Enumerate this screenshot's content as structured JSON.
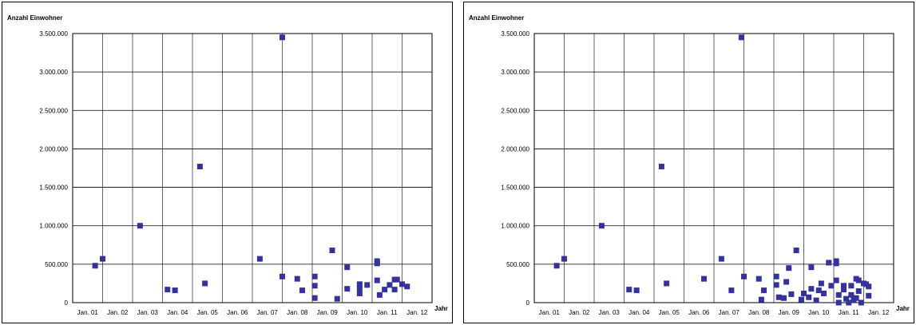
{
  "chart_data": [
    {
      "type": "scatter",
      "ylabel": "Anzahl Einwohner",
      "xlabel": "Jahr",
      "ylim": [
        0,
        3500000
      ],
      "yticks": [
        0,
        500000,
        1000000,
        1500000,
        2000000,
        2500000,
        3000000,
        3500000
      ],
      "ytick_labels": [
        "0",
        "500.000",
        "1.000.000",
        "1.500.000",
        "2.000.000",
        "2.500.000",
        "3.000.000",
        "3.500.000"
      ],
      "xlim": [
        "2001-01",
        "2013-01"
      ],
      "xtick_labels": [
        "Jan. 01",
        "Jan. 02",
        "Jan. 03",
        "Jan. 04",
        "Jan. 05",
        "Jan. 06",
        "Jan. 07",
        "Jan. 08",
        "Jan. 09",
        "Jan. 10",
        "Jan. 11",
        "Jan. 12"
      ],
      "grid": true,
      "marker_color": "#333399",
      "points": [
        {
          "x": "2001-10",
          "y": 480000
        },
        {
          "x": "2002-01",
          "y": 570000
        },
        {
          "x": "2003-04",
          "y": 1000000
        },
        {
          "x": "2004-03",
          "y": 170000
        },
        {
          "x": "2004-06",
          "y": 160000
        },
        {
          "x": "2005-04",
          "y": 1770000
        },
        {
          "x": "2005-06",
          "y": 250000
        },
        {
          "x": "2007-04",
          "y": 570000
        },
        {
          "x": "2008-01",
          "y": 3450000
        },
        {
          "x": "2008-01",
          "y": 340000
        },
        {
          "x": "2008-07",
          "y": 310000
        },
        {
          "x": "2008-09",
          "y": 160000
        },
        {
          "x": "2009-02",
          "y": 340000
        },
        {
          "x": "2009-02",
          "y": 220000
        },
        {
          "x": "2009-02",
          "y": 60000
        },
        {
          "x": "2009-09",
          "y": 680000
        },
        {
          "x": "2009-11",
          "y": 50000
        },
        {
          "x": "2010-03",
          "y": 460000
        },
        {
          "x": "2010-03",
          "y": 180000
        },
        {
          "x": "2010-08",
          "y": 240000
        },
        {
          "x": "2010-08",
          "y": 190000
        },
        {
          "x": "2010-08",
          "y": 120000
        },
        {
          "x": "2010-11",
          "y": 230000
        },
        {
          "x": "2011-03",
          "y": 540000
        },
        {
          "x": "2011-03",
          "y": 510000
        },
        {
          "x": "2011-03",
          "y": 290000
        },
        {
          "x": "2011-04",
          "y": 100000
        },
        {
          "x": "2011-06",
          "y": 170000
        },
        {
          "x": "2011-08",
          "y": 230000
        },
        {
          "x": "2011-10",
          "y": 300000
        },
        {
          "x": "2011-10",
          "y": 170000
        },
        {
          "x": "2011-11",
          "y": 300000
        },
        {
          "x": "2012-01",
          "y": 240000
        },
        {
          "x": "2012-03",
          "y": 210000
        }
      ]
    },
    {
      "type": "scatter",
      "ylabel": "Anzahl Einwohner",
      "xlabel": "Jahr",
      "ylim": [
        0,
        3500000
      ],
      "yticks": [
        0,
        500000,
        1000000,
        1500000,
        2000000,
        2500000,
        3000000,
        3500000
      ],
      "ytick_labels": [
        "0",
        "500.000",
        "1.000.000",
        "1.500.000",
        "2.000.000",
        "2.500.000",
        "3.000.000",
        "3.500.000"
      ],
      "xlim": [
        "2001-01",
        "2013-01"
      ],
      "xtick_labels": [
        "Jan. 01",
        "Jan. 02",
        "Jan. 03",
        "Jan. 04",
        "Jan. 05",
        "Jan. 06",
        "Jan. 07",
        "Jan. 08",
        "Jan. 09",
        "Jan. 10",
        "Jan. 11",
        "Jan. 12"
      ],
      "grid": true,
      "marker_color": "#333399",
      "points": [
        {
          "x": "2001-10",
          "y": 480000
        },
        {
          "x": "2002-01",
          "y": 570000
        },
        {
          "x": "2003-04",
          "y": 1000000
        },
        {
          "x": "2004-03",
          "y": 170000
        },
        {
          "x": "2004-06",
          "y": 160000
        },
        {
          "x": "2005-04",
          "y": 1770000
        },
        {
          "x": "2005-06",
          "y": 250000
        },
        {
          "x": "2006-09",
          "y": 310000
        },
        {
          "x": "2007-04",
          "y": 570000
        },
        {
          "x": "2007-08",
          "y": 160000
        },
        {
          "x": "2007-12",
          "y": 3450000
        },
        {
          "x": "2008-01",
          "y": 340000
        },
        {
          "x": "2008-07",
          "y": 310000
        },
        {
          "x": "2008-08",
          "y": 40000
        },
        {
          "x": "2008-09",
          "y": 160000
        },
        {
          "x": "2009-02",
          "y": 340000
        },
        {
          "x": "2009-02",
          "y": 230000
        },
        {
          "x": "2009-03",
          "y": 70000
        },
        {
          "x": "2009-05",
          "y": 60000
        },
        {
          "x": "2009-06",
          "y": 270000
        },
        {
          "x": "2009-07",
          "y": 450000
        },
        {
          "x": "2009-08",
          "y": 110000
        },
        {
          "x": "2009-10",
          "y": 680000
        },
        {
          "x": "2009-12",
          "y": 40000
        },
        {
          "x": "2010-01",
          "y": 120000
        },
        {
          "x": "2010-03",
          "y": 70000
        },
        {
          "x": "2010-04",
          "y": 460000
        },
        {
          "x": "2010-04",
          "y": 180000
        },
        {
          "x": "2010-06",
          "y": 30000
        },
        {
          "x": "2010-07",
          "y": 160000
        },
        {
          "x": "2010-08",
          "y": 250000
        },
        {
          "x": "2010-09",
          "y": 120000
        },
        {
          "x": "2010-11",
          "y": 520000
        },
        {
          "x": "2010-12",
          "y": 220000
        },
        {
          "x": "2011-02",
          "y": 540000
        },
        {
          "x": "2011-02",
          "y": 510000
        },
        {
          "x": "2011-02",
          "y": 290000
        },
        {
          "x": "2011-03",
          "y": 0
        },
        {
          "x": "2011-03",
          "y": 100000
        },
        {
          "x": "2011-05",
          "y": 220000
        },
        {
          "x": "2011-05",
          "y": 170000
        },
        {
          "x": "2011-06",
          "y": 50000
        },
        {
          "x": "2011-07",
          "y": 0
        },
        {
          "x": "2011-08",
          "y": 100000
        },
        {
          "x": "2011-08",
          "y": 220000
        },
        {
          "x": "2011-09",
          "y": 30000
        },
        {
          "x": "2011-10",
          "y": 310000
        },
        {
          "x": "2011-10",
          "y": 60000
        },
        {
          "x": "2011-11",
          "y": 150000
        },
        {
          "x": "2011-11",
          "y": 290000
        },
        {
          "x": "2011-12",
          "y": 0
        },
        {
          "x": "2012-01",
          "y": 250000
        },
        {
          "x": "2012-02",
          "y": 240000
        },
        {
          "x": "2012-03",
          "y": 210000
        },
        {
          "x": "2012-03",
          "y": 90000
        }
      ]
    }
  ]
}
